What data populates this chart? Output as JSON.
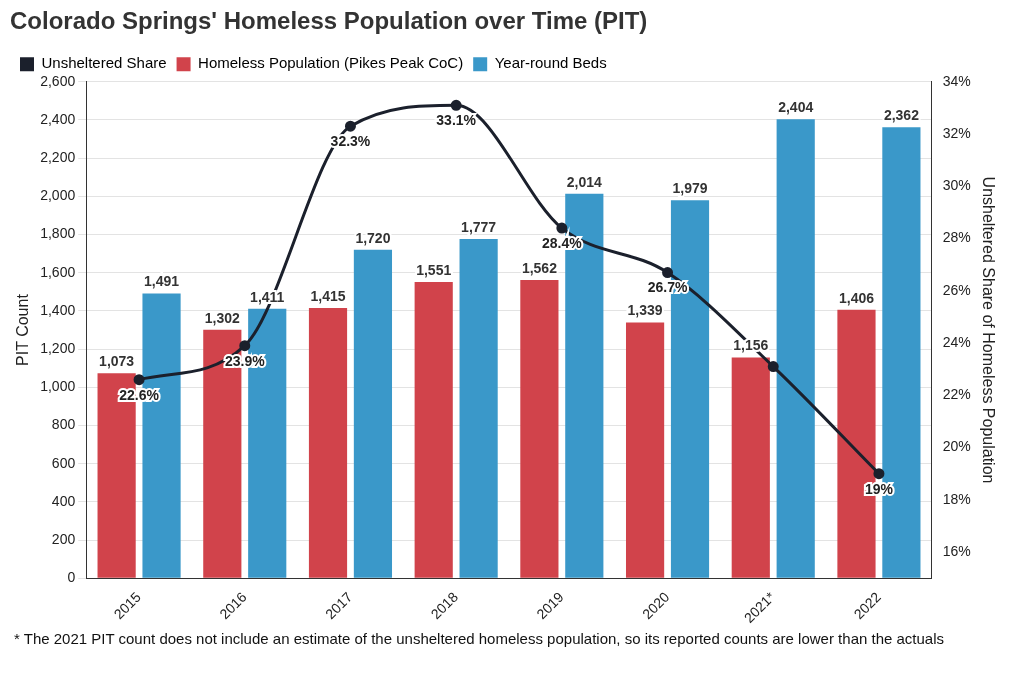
{
  "chart_data": {
    "type": "bar",
    "title": "Colorado Springs' Homeless Population over Time (PIT)",
    "ylabel": "PIT Count",
    "y2label": "Unsheltered Share of Homeless Population",
    "categories": [
      "2015",
      "2016",
      "2017",
      "2018",
      "2019",
      "2020",
      "2021*",
      "2022"
    ],
    "series": [
      {
        "name": "Unsheltered Share",
        "type": "line",
        "axis": "y2",
        "color": "#1b202c",
        "marker": "circle",
        "values": [
          22.6,
          23.9,
          32.3,
          33.1,
          28.4,
          26.7,
          23.1,
          19
        ],
        "value_labels": [
          "22.6%",
          "23.9%",
          "32.3%",
          "33.1%",
          "28.4%",
          "26.7%",
          null,
          "19%"
        ]
      },
      {
        "name": "Homeless Population (Pikes Peak CoC)",
        "color": "#d1434b",
        "values": [
          1073,
          1302,
          1415,
          1551,
          1562,
          1339,
          1156,
          1406
        ],
        "value_labels": [
          "1,073",
          "1,302",
          "1,415",
          "1,551",
          "1,562",
          "1,339",
          "1,156",
          "1,406"
        ]
      },
      {
        "name": "Year-round Beds",
        "color": "#3a98c9",
        "values": [
          1491,
          1411,
          1720,
          1777,
          2014,
          1979,
          2404,
          2362
        ],
        "value_labels": [
          "1,491",
          "1,411",
          "1,720",
          "1,777",
          "2,014",
          "1,979",
          "2,404",
          "2,362"
        ]
      }
    ],
    "ylim": [
      0,
      2600
    ],
    "yticks": [
      0,
      {
        "value": 200,
        "label": "200"
      },
      {
        "value": 400,
        "label": "400"
      },
      {
        "value": 600,
        "label": "600"
      },
      {
        "value": 800,
        "label": "800"
      },
      {
        "value": 1000,
        "label": "1,000"
      },
      {
        "value": 1200,
        "label": "1,200"
      },
      {
        "value": 1400,
        "label": "1,400"
      },
      {
        "value": 1600,
        "label": "1,600"
      },
      {
        "value": 1800,
        "label": "1,800"
      },
      {
        "value": 2000,
        "label": "2,000"
      },
      {
        "value": 2200,
        "label": "2,200"
      },
      {
        "value": 2400,
        "label": "2,400"
      },
      {
        "value": 2600,
        "label": "2,600"
      }
    ],
    "y2lim": [
      15,
      34
    ],
    "y2ticks": [
      {
        "value": 16,
        "label": "16%"
      },
      {
        "value": 18,
        "label": "18%"
      },
      {
        "value": 20,
        "label": "20%"
      },
      {
        "value": 22,
        "label": "22%"
      },
      {
        "value": 24,
        "label": "24%"
      },
      {
        "value": 26,
        "label": "26%"
      },
      {
        "value": 28,
        "label": "28%"
      },
      {
        "value": 30,
        "label": "30%"
      },
      {
        "value": 32,
        "label": "32%"
      },
      {
        "value": 34,
        "label": "34%"
      }
    ],
    "grid": "y",
    "legend": "top left",
    "annotations": [
      "* The 2021 PIT count does not include an estimate of the unsheltered homeless population, so its reported counts are lower than the actuals"
    ]
  }
}
